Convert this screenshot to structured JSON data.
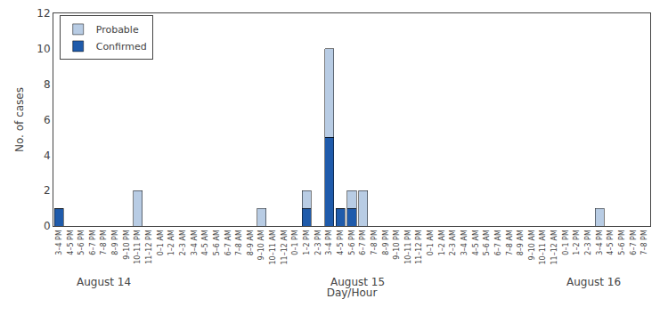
{
  "chart_data": {
    "type": "bar",
    "stacked": true,
    "xlabel": "Day/Hour",
    "ylabel": "No. of cases",
    "ylim": [
      0,
      12
    ],
    "yticks": [
      0,
      2,
      4,
      6,
      8,
      10,
      12
    ],
    "grid": false,
    "legend": "upper left",
    "categories": [
      "3–4 PM",
      "4–5 PM",
      "5–6 PM",
      "6–7 PM",
      "7–8 PM",
      "8–9 PM",
      "9–10 PM",
      "10–11 PM",
      "11–12 PM",
      "0–1 AM",
      "1–2 AM",
      "2–3 AM",
      "3–4 AM",
      "4–5 AM",
      "5–6 AM",
      "6–7 AM",
      "7–8 AM",
      "8–9 AM",
      "9–10 AM",
      "10–11 AM",
      "11–12 AM",
      "0–1 PM",
      "1–2 PM",
      "2–3 PM",
      "3–4 PM",
      "4–5 PM",
      "5–6 PM",
      "6–7 PM",
      "7–8 PM",
      "8–9 PM",
      "9–10 PM",
      "10–11 PM",
      "11–12 PM",
      "0–1 AM",
      "1–2 AM",
      "2–3 AM",
      "3–4 AM",
      "4–5 AM",
      "5–6 AM",
      "6–7 AM",
      "7–8 AM",
      "8–9 AM",
      "9–10 AM",
      "10–11 AM",
      "11–12 AM",
      "0–1 PM",
      "1–2 PM",
      "2–3 PM",
      "3–4 PM",
      "4–5 PM",
      "5–6 PM",
      "6–7 PM",
      "7–8 PM"
    ],
    "series": [
      {
        "name": "Confirmed",
        "color": "#1f5bab",
        "values": [
          1,
          0,
          0,
          0,
          0,
          0,
          0,
          0,
          0,
          0,
          0,
          0,
          0,
          0,
          0,
          0,
          0,
          0,
          0,
          0,
          0,
          0,
          1,
          0,
          5,
          1,
          1,
          0,
          0,
          0,
          0,
          0,
          0,
          0,
          0,
          0,
          0,
          0,
          0,
          0,
          0,
          0,
          0,
          0,
          0,
          0,
          0,
          0,
          0,
          0,
          0,
          0,
          0
        ]
      },
      {
        "name": "Probable",
        "color": "#b8cce4",
        "values": [
          0,
          0,
          0,
          0,
          0,
          0,
          0,
          2,
          0,
          0,
          0,
          0,
          0,
          0,
          0,
          0,
          0,
          0,
          1,
          0,
          0,
          0,
          1,
          0,
          5,
          0,
          1,
          2,
          0,
          0,
          0,
          0,
          0,
          0,
          0,
          0,
          0,
          0,
          0,
          0,
          0,
          0,
          0,
          0,
          0,
          0,
          0,
          0,
          1,
          0,
          0,
          0,
          0
        ]
      }
    ],
    "annotations": [
      {
        "text": "August 14",
        "x": 4
      },
      {
        "text": "August 15",
        "x": 26.5
      },
      {
        "text": "August 16",
        "x": 47.5
      }
    ]
  }
}
